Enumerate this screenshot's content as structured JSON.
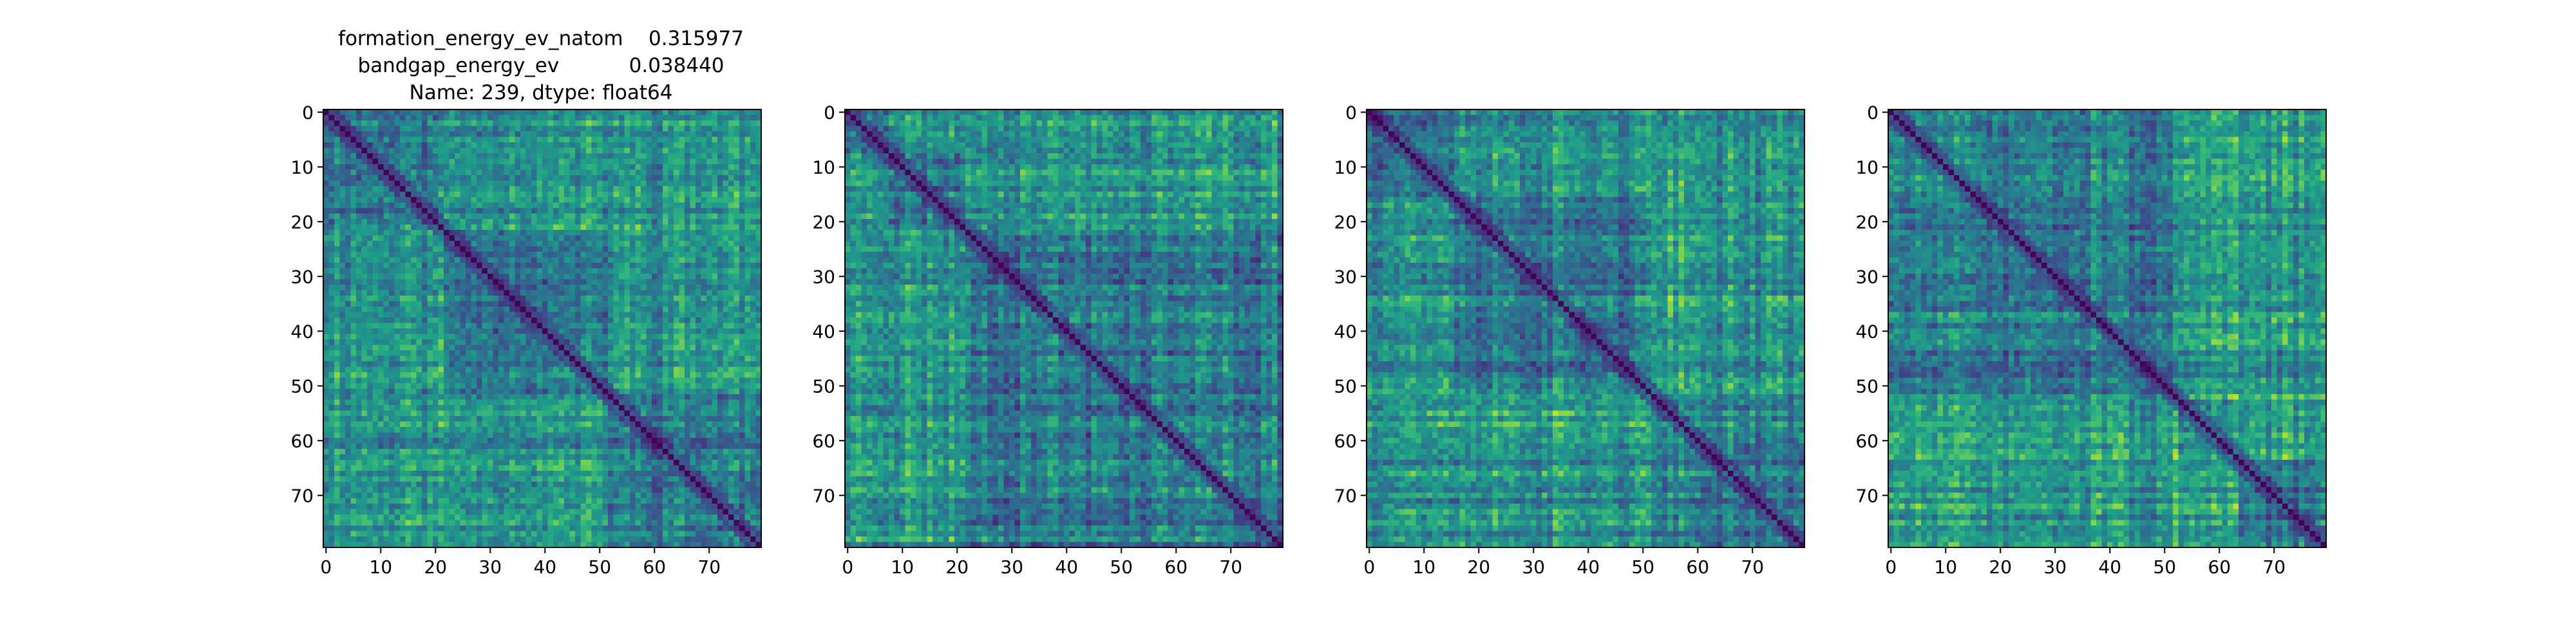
{
  "figure": {
    "title_lines": [
      "formation_energy_ev_natom    0.315977",
      "bandgap_energy_ev           0.038440",
      "Name: 239, dtype: float64"
    ]
  },
  "chart_data": [
    {
      "type": "heatmap",
      "n": 80,
      "colormap": "viridis",
      "seed": 11,
      "block_boundaries": [
        22,
        52
      ],
      "x_ticks": [
        0,
        10,
        20,
        30,
        40,
        50,
        60,
        70
      ],
      "y_ticks": [
        0,
        10,
        20,
        30,
        40,
        50,
        60,
        70
      ],
      "value_range": [
        0,
        1
      ],
      "grid": false,
      "title": "see figure.title_lines"
    },
    {
      "type": "heatmap",
      "n": 80,
      "colormap": "viridis",
      "seed": 23,
      "block_boundaries": [
        8,
        22
      ],
      "x_ticks": [
        0,
        10,
        20,
        30,
        40,
        50,
        60,
        70
      ],
      "y_ticks": [
        0,
        10,
        20,
        30,
        40,
        50,
        60,
        70
      ],
      "value_range": [
        0,
        1
      ],
      "grid": false
    },
    {
      "type": "heatmap",
      "n": 80,
      "colormap": "viridis",
      "seed": 37,
      "block_boundaries": [
        16,
        52
      ],
      "x_ticks": [
        0,
        10,
        20,
        30,
        40,
        50,
        60,
        70
      ],
      "y_ticks": [
        0,
        10,
        20,
        30,
        40,
        50,
        60,
        70
      ],
      "value_range": [
        0,
        1
      ],
      "grid": false
    },
    {
      "type": "heatmap",
      "n": 80,
      "colormap": "viridis",
      "seed": 51,
      "block_boundaries": [
        53,
        64
      ],
      "x_ticks": [
        0,
        10,
        20,
        30,
        40,
        50,
        60,
        70
      ],
      "y_ticks": [
        0,
        10,
        20,
        30,
        40,
        50,
        60,
        70
      ],
      "value_range": [
        0,
        1
      ],
      "grid": false
    }
  ]
}
